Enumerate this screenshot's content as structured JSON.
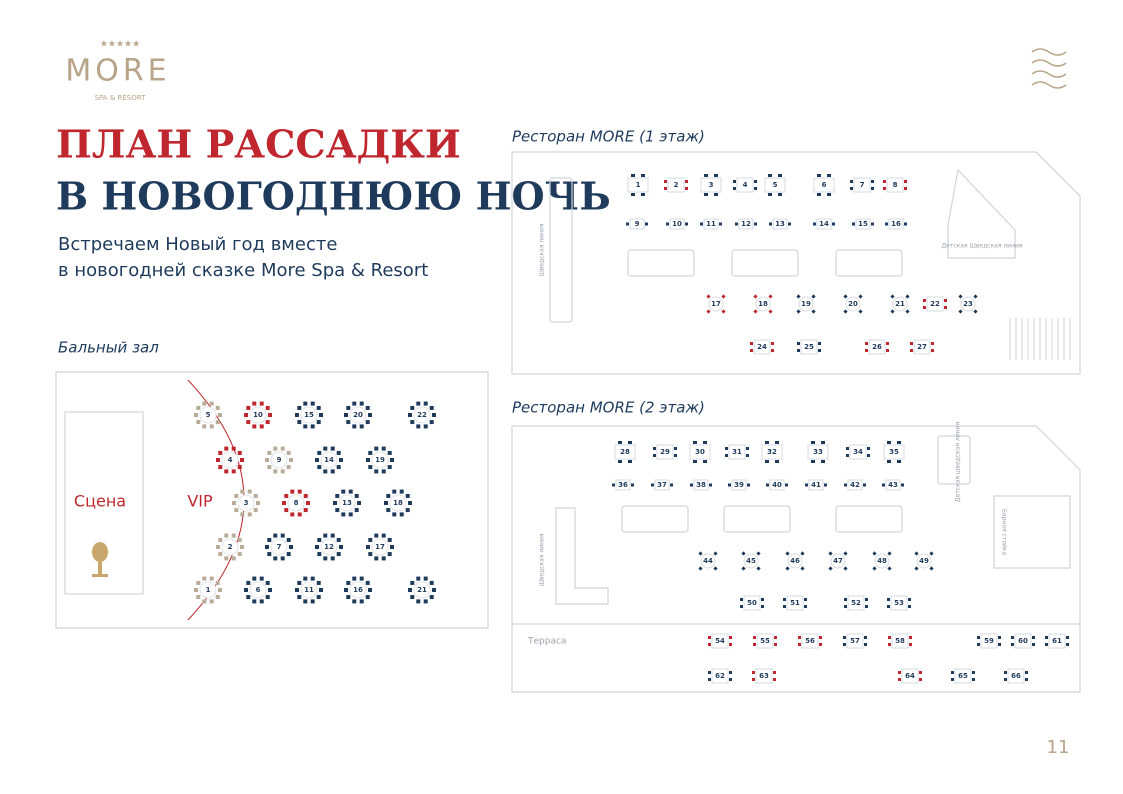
{
  "header": {
    "brand": "MORE",
    "tagline": "SPA & RESORT"
  },
  "title": {
    "line1": "ПЛАН РАССАДКИ",
    "line2": "В НОВОГОДНЮЮ НОЧЬ"
  },
  "subtitle": {
    "line1": "Встречаем Новый год вместе",
    "line2": "в новогодней сказке More Spa & Resort"
  },
  "ballroom": {
    "label": "Бальный зал",
    "stage": "Сцена",
    "vip": "VIP",
    "tables": [
      1,
      2,
      3,
      4,
      5,
      6,
      7,
      8,
      9,
      10,
      11,
      12,
      13,
      14,
      15,
      16,
      17,
      18,
      19,
      20,
      21,
      22
    ]
  },
  "floor1": {
    "label": "Ресторан MORE (1 этаж)",
    "buffet": "Шведская линия",
    "kids_buffet": "Детская Шведская линия",
    "tables": [
      1,
      2,
      3,
      4,
      5,
      6,
      7,
      8,
      9,
      10,
      11,
      12,
      13,
      14,
      15,
      16,
      17,
      18,
      19,
      20,
      21,
      22,
      23,
      24,
      25,
      26,
      27
    ]
  },
  "floor2": {
    "label": "Ресторан MORE (2 этаж)",
    "buffet": "Шведская линия",
    "kids_buffet": "Детская шведская линия",
    "bar": "Барная стойка",
    "terrace": "Терраса",
    "tables": [
      28,
      29,
      30,
      31,
      32,
      33,
      34,
      35,
      36,
      37,
      38,
      39,
      40,
      41,
      42,
      43,
      44,
      45,
      46,
      47,
      48,
      49,
      50,
      51,
      52,
      53,
      54,
      55,
      56,
      57,
      58,
      59,
      60,
      61,
      62,
      63,
      64,
      65,
      66
    ]
  },
  "page_number": "11"
}
